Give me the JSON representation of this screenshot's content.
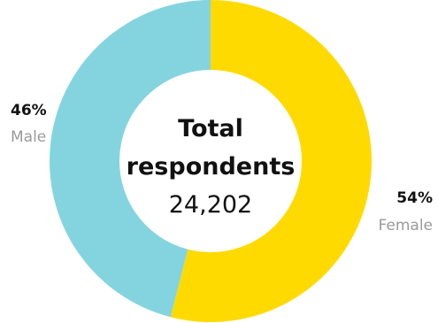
{
  "chart_data": {
    "type": "pie",
    "variant": "donut",
    "center_title": [
      "Total",
      "respondents"
    ],
    "center_value": "24,202",
    "slices": [
      {
        "name": "Female",
        "value": 54,
        "label": "54%",
        "color": "#FFDA00"
      },
      {
        "name": "Male",
        "value": 46,
        "label": "46%",
        "color": "#84D4E0"
      }
    ],
    "start": "top",
    "direction": "clockwise",
    "legend": "none"
  }
}
